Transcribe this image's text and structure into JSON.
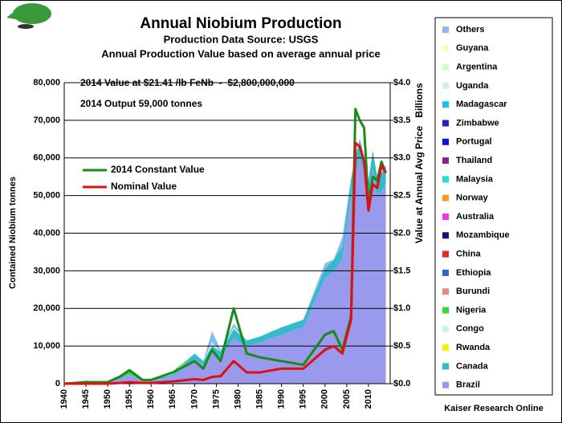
{
  "chart_data": {
    "type": "stacked_area",
    "title": "Annual Niobium Production",
    "subtitle": "Production Data Source: USGS",
    "subtitle2": "Annual Production Value based on average annual price",
    "annotations": [
      "2014 Value at $21.41 /lb FeNb  -  $2,800,000,000",
      "2014 Output 59,000 tonnes"
    ],
    "ylabel": "Contained Niobium tonnes",
    "y2label": "Value at Annual Avg Price",
    "y2unit": "Billions",
    "source": "Kaiser Research Online",
    "x": [
      1940,
      1945,
      1950,
      1953,
      1955,
      1958,
      1960,
      1965,
      1970,
      1972,
      1974,
      1976,
      1979,
      1982,
      1985,
      1990,
      1995,
      2000,
      2002,
      2004,
      2006,
      2007,
      2008,
      2009,
      2010,
      2011,
      2012,
      2013,
      2014
    ],
    "xlim": [
      1940,
      2015
    ],
    "xticks": [
      1940,
      1945,
      1950,
      1955,
      1960,
      1965,
      1970,
      1975,
      1980,
      1985,
      1990,
      1995,
      2000,
      2005,
      2010
    ],
    "ylim": [
      0,
      80000
    ],
    "yticks": [
      0,
      {
        "value": 10000,
        "label": "10,000"
      },
      {
        "value": 20000,
        "label": "20,000"
      },
      {
        "value": 30000,
        "label": "30,000"
      },
      {
        "value": 40000,
        "label": "40,000"
      },
      {
        "value": 50000,
        "label": "50,000"
      },
      {
        "value": 60000,
        "label": "60,000"
      },
      {
        "value": 70000,
        "label": "70,000"
      },
      {
        "value": 80000,
        "label": "80,000"
      }
    ],
    "y2lim": [
      0,
      4
    ],
    "y2ticks": [
      {
        "value": 0,
        "label": "$0.0"
      },
      {
        "value": 0.5,
        "label": "$0.5"
      },
      {
        "value": 1,
        "label": "$1.0"
      },
      {
        "value": 1.5,
        "label": "$1.5"
      },
      {
        "value": 2,
        "label": "$2.0"
      },
      {
        "value": 2.5,
        "label": "$2.5"
      },
      {
        "value": 3,
        "label": "$3.0"
      },
      {
        "value": 3.5,
        "label": "$3.5"
      },
      {
        "value": 4,
        "label": "$4.0"
      }
    ],
    "grid": true,
    "series": [
      {
        "name": "Brazil",
        "color": "#9999ee",
        "values": [
          0,
          500,
          200,
          1500,
          2500,
          700,
          800,
          2000,
          6500,
          5000,
          8000,
          7000,
          12000,
          10000,
          11000,
          13000,
          15000,
          28000,
          30000,
          33000,
          50000,
          56000,
          60000,
          56000,
          50000,
          57000,
          50000,
          51000,
          53000
        ]
      },
      {
        "name": "Canada",
        "color": "#33bbcc",
        "values": [
          0,
          0,
          0,
          0,
          0,
          0,
          0,
          500,
          1500,
          1000,
          2000,
          1500,
          2500,
          1500,
          1500,
          2000,
          2000,
          2500,
          3000,
          3500,
          4500,
          4500,
          5000,
          4500,
          4000,
          5000,
          5000,
          5000,
          5000
        ]
      },
      {
        "name": "Rwanda",
        "color": "#ffee00",
        "values": [
          0,
          0,
          0,
          0,
          0,
          0,
          0,
          0,
          0,
          0,
          0,
          0,
          0,
          0,
          0,
          0,
          0,
          0,
          0,
          0,
          0,
          0,
          0,
          0,
          0,
          0,
          0,
          0,
          0
        ]
      },
      {
        "name": "Congo",
        "color": "#ccf4f4",
        "values": [
          0,
          0,
          0,
          0,
          0,
          0,
          0,
          300,
          0,
          0,
          1000,
          0,
          500,
          0,
          0,
          0,
          0,
          0,
          0,
          0,
          0,
          0,
          0,
          0,
          0,
          0,
          0,
          0,
          0
        ]
      },
      {
        "name": "Nigeria",
        "color": "#33dd33",
        "values": [
          0,
          300,
          100,
          500,
          1000,
          300,
          200,
          500,
          0,
          0,
          0,
          0,
          0,
          0,
          0,
          0,
          0,
          0,
          0,
          0,
          0,
          0,
          0,
          0,
          0,
          0,
          0,
          0,
          0
        ]
      },
      {
        "name": "Burundi",
        "color": "#ee8888",
        "values": [
          0,
          0,
          0,
          0,
          0,
          0,
          0,
          0,
          0,
          0,
          0,
          0,
          0,
          0,
          0,
          0,
          0,
          0,
          0,
          0,
          0,
          0,
          0,
          0,
          0,
          0,
          0,
          0,
          0
        ]
      },
      {
        "name": "Ethiopia",
        "color": "#3366cc",
        "values": [
          0,
          0,
          0,
          0,
          0,
          0,
          0,
          0,
          0,
          0,
          0,
          0,
          0,
          0,
          0,
          0,
          0,
          0,
          0,
          0,
          0,
          0,
          0,
          0,
          0,
          0,
          0,
          0,
          0
        ]
      },
      {
        "name": "China",
        "color": "#ee2222",
        "values": [
          0,
          0,
          0,
          0,
          0,
          0,
          0,
          0,
          0,
          0,
          0,
          0,
          0,
          0,
          0,
          0,
          0,
          0,
          0,
          0,
          0,
          0,
          0,
          0,
          0,
          0,
          0,
          0,
          0
        ]
      },
      {
        "name": "Mozambique",
        "color": "#111177",
        "values": [
          0,
          0,
          0,
          0,
          0,
          0,
          0,
          0,
          0,
          0,
          0,
          0,
          0,
          0,
          0,
          0,
          0,
          0,
          0,
          0,
          0,
          0,
          0,
          0,
          0,
          0,
          0,
          0,
          0
        ]
      },
      {
        "name": "Australia",
        "color": "#ee33ee",
        "values": [
          0,
          0,
          0,
          0,
          0,
          0,
          0,
          0,
          0,
          0,
          0,
          0,
          0,
          0,
          0,
          0,
          0,
          0,
          0,
          0,
          0,
          0,
          0,
          0,
          0,
          0,
          0,
          0,
          0
        ]
      },
      {
        "name": "Norway",
        "color": "#ff9922",
        "values": [
          0,
          0,
          0,
          0,
          0,
          0,
          0,
          0,
          0,
          0,
          0,
          0,
          0,
          0,
          0,
          0,
          0,
          0,
          0,
          0,
          0,
          0,
          0,
          0,
          0,
          0,
          0,
          0,
          0
        ]
      },
      {
        "name": "Malaysia",
        "color": "#22dddd",
        "values": [
          0,
          0,
          0,
          0,
          0,
          0,
          0,
          0,
          0,
          0,
          0,
          0,
          0,
          0,
          0,
          0,
          0,
          0,
          0,
          0,
          0,
          0,
          0,
          0,
          0,
          0,
          0,
          0,
          0
        ]
      },
      {
        "name": "Thailand",
        "color": "#882299",
        "values": [
          0,
          0,
          0,
          0,
          0,
          0,
          0,
          0,
          0,
          0,
          0,
          0,
          0,
          0,
          0,
          0,
          0,
          0,
          0,
          0,
          0,
          0,
          0,
          0,
          0,
          0,
          0,
          0,
          0
        ]
      },
      {
        "name": "Portugal",
        "color": "#1111dd",
        "values": [
          0,
          0,
          0,
          0,
          0,
          0,
          0,
          0,
          0,
          0,
          0,
          0,
          0,
          0,
          0,
          0,
          0,
          0,
          0,
          0,
          0,
          0,
          0,
          0,
          0,
          0,
          0,
          0,
          0
        ]
      },
      {
        "name": "Zimbabwe",
        "color": "#2222bb",
        "values": [
          0,
          0,
          0,
          0,
          0,
          0,
          0,
          0,
          0,
          0,
          0,
          0,
          0,
          0,
          0,
          0,
          0,
          0,
          0,
          0,
          0,
          0,
          0,
          0,
          0,
          0,
          0,
          0,
          0
        ]
      },
      {
        "name": "Madagascar",
        "color": "#22bbee",
        "values": [
          0,
          0,
          0,
          0,
          0,
          0,
          0,
          0,
          0,
          0,
          0,
          0,
          0,
          0,
          0,
          0,
          0,
          0,
          0,
          0,
          0,
          0,
          0,
          0,
          0,
          0,
          0,
          0,
          0
        ]
      },
      {
        "name": "Uganda",
        "color": "#ccf0f0",
        "values": [
          0,
          0,
          0,
          0,
          0,
          0,
          0,
          0,
          0,
          0,
          0,
          0,
          0,
          0,
          0,
          0,
          0,
          0,
          0,
          0,
          0,
          0,
          0,
          0,
          0,
          0,
          0,
          0,
          0
        ]
      },
      {
        "name": "Argentina",
        "color": "#ccffcc",
        "values": [
          0,
          0,
          0,
          0,
          0,
          0,
          0,
          0,
          0,
          0,
          0,
          0,
          0,
          0,
          0,
          0,
          0,
          0,
          0,
          0,
          0,
          0,
          0,
          0,
          0,
          0,
          0,
          0,
          0
        ]
      },
      {
        "name": "Guyana",
        "color": "#ffffaa",
        "values": [
          0,
          0,
          0,
          0,
          0,
          0,
          0,
          0,
          0,
          0,
          0,
          0,
          0,
          0,
          0,
          0,
          0,
          0,
          0,
          0,
          0,
          0,
          0,
          0,
          0,
          0,
          0,
          0,
          0
        ]
      },
      {
        "name": "Others",
        "color": "#88bbee",
        "values": [
          0,
          0,
          0,
          0,
          0,
          0,
          0,
          0,
          0,
          0,
          3000,
          500,
          1000,
          0,
          0,
          0,
          0,
          1500,
          0,
          2500,
          0,
          0,
          0,
          0,
          0,
          0,
          0,
          0,
          0
        ]
      }
    ],
    "lines": [
      {
        "name": "2014 Constant Value",
        "color": "#1a8a1a",
        "axis": "y2",
        "values": [
          0,
          0.02,
          0.02,
          0.1,
          0.18,
          0.05,
          0.05,
          0.15,
          0.3,
          0.2,
          0.45,
          0.3,
          1.0,
          0.4,
          0.35,
          0.3,
          0.25,
          0.65,
          0.7,
          0.45,
          0.9,
          3.65,
          3.5,
          3.4,
          2.4,
          2.75,
          2.7,
          2.95,
          2.8
        ]
      },
      {
        "name": "Nominal Value",
        "color": "#e01010",
        "axis": "y2",
        "values": [
          0,
          0,
          0,
          0.01,
          0.02,
          0.01,
          0.01,
          0.03,
          0.06,
          0.05,
          0.09,
          0.1,
          0.3,
          0.15,
          0.15,
          0.2,
          0.2,
          0.45,
          0.5,
          0.4,
          0.85,
          3.2,
          3.15,
          2.95,
          2.3,
          2.65,
          2.6,
          2.9,
          2.8
        ]
      }
    ]
  }
}
